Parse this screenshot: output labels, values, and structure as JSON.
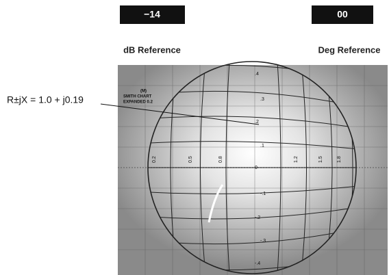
{
  "reference_boxes": [
    {
      "value": "−14",
      "label": "dB Reference"
    },
    {
      "value": "00",
      "label": "Deg Reference"
    }
  ],
  "annotation": "R±jX = 1.0 + j0.19",
  "screen": {
    "caption": [
      "(M)",
      "SMITH CHART",
      "EXPANDED 0.2"
    ],
    "reactance_labels": [
      ".4",
      ".3",
      ".2",
      ".1",
      "0",
      "-.1",
      "-.2",
      "-.3",
      "-.4"
    ],
    "resistance_labels": [
      "0.2",
      "0.5",
      "0.8",
      "1.2",
      "1.5",
      "1.8"
    ]
  }
}
